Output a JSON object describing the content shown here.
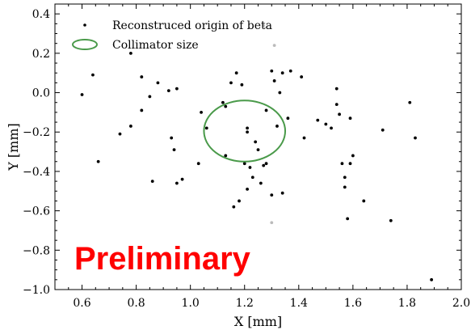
{
  "chart_data": {
    "type": "scatter",
    "xlabel": "X [mm]",
    "ylabel": "Y [mm]",
    "xlim": [
      0.5,
      2.0
    ],
    "ylim": [
      -1.0,
      0.45
    ],
    "xticks": [
      0.6,
      0.8,
      1.0,
      1.2,
      1.4,
      1.6,
      1.8,
      2.0
    ],
    "xtick_labels": [
      "0.6",
      "0.8",
      "1.0",
      "1.2",
      "1.4",
      "1.6",
      "1.8",
      "2.0"
    ],
    "yticks": [
      0.4,
      0.2,
      0.0,
      -0.2,
      -0.4,
      -0.6,
      -0.8,
      -1.0
    ],
    "ytick_labels": [
      "0.4",
      "0.2",
      "0.0",
      "−0.2",
      "−0.4",
      "−0.6",
      "−0.8",
      "−1.0"
    ],
    "grid": false,
    "legend_position": "top-left",
    "series": [
      {
        "name": "Reconstruced origin of beta",
        "marker": "dot",
        "color": "#000000",
        "points": [
          [
            0.6,
            -0.01
          ],
          [
            0.64,
            0.09
          ],
          [
            0.66,
            -0.35
          ],
          [
            0.74,
            -0.21
          ],
          [
            0.78,
            0.2
          ],
          [
            0.78,
            -0.17
          ],
          [
            0.82,
            0.08
          ],
          [
            0.82,
            -0.09
          ],
          [
            0.85,
            -0.02
          ],
          [
            0.86,
            -0.45
          ],
          [
            0.88,
            0.05
          ],
          [
            0.92,
            0.01
          ],
          [
            0.93,
            -0.23
          ],
          [
            0.94,
            -0.29
          ],
          [
            0.95,
            0.02
          ],
          [
            0.95,
            -0.46
          ],
          [
            0.97,
            -0.44
          ],
          [
            1.03,
            -0.36
          ],
          [
            1.04,
            -0.1
          ],
          [
            1.06,
            -0.18
          ],
          [
            1.12,
            -0.05
          ],
          [
            1.13,
            -0.32
          ],
          [
            1.13,
            -0.07
          ],
          [
            1.15,
            0.05
          ],
          [
            1.16,
            -0.58
          ],
          [
            1.17,
            0.1
          ],
          [
            1.18,
            -0.55
          ],
          [
            1.19,
            0.04
          ],
          [
            1.2,
            -0.36
          ],
          [
            1.21,
            -0.18
          ],
          [
            1.21,
            -0.2
          ],
          [
            1.21,
            -0.49
          ],
          [
            1.22,
            -0.38
          ],
          [
            1.23,
            -0.43
          ],
          [
            1.24,
            -0.25
          ],
          [
            1.25,
            -0.29
          ],
          [
            1.26,
            -0.46
          ],
          [
            1.27,
            -0.37
          ],
          [
            1.28,
            -0.36
          ],
          [
            1.28,
            -0.09
          ],
          [
            1.3,
            0.11
          ],
          [
            1.3,
            -0.52
          ],
          [
            1.31,
            0.06
          ],
          [
            1.32,
            -0.17
          ],
          [
            1.33,
            0.0
          ],
          [
            1.34,
            0.1
          ],
          [
            1.34,
            -0.51
          ],
          [
            1.36,
            -0.13
          ],
          [
            1.37,
            0.11
          ],
          [
            1.41,
            0.08
          ],
          [
            1.42,
            -0.23
          ],
          [
            1.47,
            -0.14
          ],
          [
            1.5,
            -0.16
          ],
          [
            1.52,
            -0.18
          ],
          [
            1.54,
            -0.06
          ],
          [
            1.54,
            0.02
          ],
          [
            1.55,
            -0.11
          ],
          [
            1.56,
            -0.36
          ],
          [
            1.57,
            -0.43
          ],
          [
            1.57,
            -0.48
          ],
          [
            1.58,
            -0.64
          ],
          [
            1.59,
            -0.13
          ],
          [
            1.59,
            -0.36
          ],
          [
            1.6,
            -0.32
          ],
          [
            1.64,
            -0.55
          ],
          [
            1.71,
            -0.19
          ],
          [
            1.74,
            -0.65
          ],
          [
            1.81,
            -0.05
          ],
          [
            1.83,
            -0.23
          ],
          [
            1.89,
            -0.95
          ]
        ]
      },
      {
        "name": "",
        "marker": "dot",
        "color": "#bbbbbb",
        "points": [
          [
            1.27,
            0.34
          ],
          [
            1.31,
            0.24
          ],
          [
            1.3,
            -0.66
          ]
        ]
      },
      {
        "name": "Collimator size",
        "shape": "ellipse",
        "color": "#4a9a4a",
        "center": [
          1.2,
          -0.195
        ],
        "radius_x": 0.15,
        "radius_y": 0.155
      }
    ],
    "annotations": [
      {
        "text": "Preliminary",
        "color": "#ff0000"
      }
    ]
  }
}
